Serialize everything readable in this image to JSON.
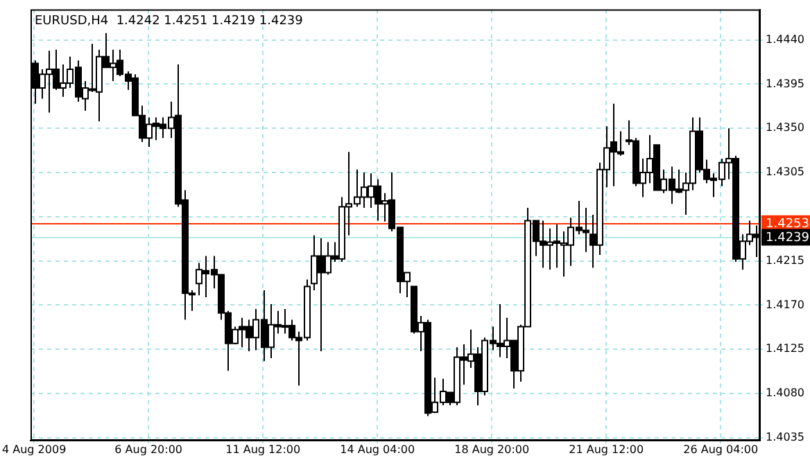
{
  "chart_data": {
    "type": "candlestick",
    "title": "EURUSD,H4  1.4242 1.4251 1.4219 1.4239",
    "colors": [
      "#000000",
      "#ffffff",
      "#ffffff",
      "#000000",
      "#ffffff",
      "#ffffff",
      "#000000",
      "#ffffff",
      "#000000",
      "#ffffff",
      "#000000",
      "#ffffff",
      "#000000",
      "#000000",
      "#000000",
      "#000000",
      "#ffffff",
      "#000000",
      "#000000",
      "#ffffff",
      "#000000",
      "#000000",
      "#ffffff",
      "#ffffff",
      "#000000",
      "#000000",
      "#000000",
      "#000000",
      "#ffffff",
      "#000000",
      "#000000",
      "#ffffff",
      "#000000",
      "#ffffff",
      "#000000",
      "#000000",
      "#000000",
      "#000000",
      "#ffffff",
      "#ffffff",
      "#000000",
      "#ffffff",
      "#000000",
      "#ffffff",
      "#ffffff",
      "#ffffff",
      "#ffffff",
      "#ffffff",
      "#000000",
      "#ffffff",
      "#000000",
      "#000000",
      "#ffffff",
      "#000000",
      "#ffffff",
      "#000000",
      "#ffffff",
      "#ffffff",
      "#000000",
      "#ffffff",
      "#000000",
      "#ffffff",
      "#000000",
      "#ffffff",
      "#000000",
      "#000000",
      "#ffffff",
      "#000000",
      "#ffffff",
      "#ffffff",
      "#000000",
      "#000000",
      "#ffffff",
      "#000000",
      "#ffffff",
      "#ffffff",
      "#000000",
      "#000000",
      "#000000",
      "#ffffff",
      "#ffffff",
      "#000000",
      "#000000",
      "#000000",
      "#000000",
      "#ffffff",
      "#ffffff",
      "#000000",
      "#ffffff",
      "#000000",
      "#000000",
      "#ffffff",
      "#ffffff",
      "#000000",
      "#000000",
      "#000000",
      "#ffffff",
      "#ffffff",
      "#000000",
      "#ffffff",
      "#ffffff",
      "#000000"
    ],
    "categories": [
      "4 Aug 2009",
      null,
      null,
      null,
      null,
      null,
      null,
      null,
      null,
      null,
      null,
      null,
      null,
      null,
      null,
      null,
      "6 Aug 20:00",
      null,
      null,
      null,
      null,
      null,
      null,
      null,
      null,
      null,
      null,
      null,
      null,
      null,
      null,
      null,
      "11 Aug 12:00",
      null,
      null,
      null,
      null,
      null,
      null,
      null,
      null,
      null,
      null,
      null,
      null,
      null,
      null,
      null,
      "14 Aug 04:00",
      null,
      null,
      null,
      null,
      null,
      null,
      null,
      null,
      null,
      null,
      null,
      null,
      null,
      null,
      null,
      "18 Aug 20:00",
      null,
      null,
      null,
      null,
      null,
      null,
      null,
      null,
      null,
      null,
      null,
      null,
      null,
      null,
      null,
      "21 Aug 12:00",
      null,
      null,
      null,
      null,
      null,
      null,
      null,
      null,
      null,
      null,
      null,
      null,
      null,
      null,
      null,
      "26 Aug 04:00",
      null,
      null,
      null,
      null,
      null
    ],
    "ohlc": [
      [
        1.4416,
        1.4419,
        1.4375,
        1.4391
      ],
      [
        1.4391,
        1.441,
        1.438,
        1.4405
      ],
      [
        1.4405,
        1.4429,
        1.4366,
        1.441
      ],
      [
        1.441,
        1.443,
        1.4389,
        1.4391
      ],
      [
        1.4391,
        1.4415,
        1.4382,
        1.4396
      ],
      [
        1.4396,
        1.4423,
        1.4391,
        1.441
      ],
      [
        1.4412,
        1.4419,
        1.4377,
        1.4382
      ],
      [
        1.438,
        1.4398,
        1.4368,
        1.4391
      ],
      [
        1.439,
        1.4436,
        1.4387,
        1.4389
      ],
      [
        1.4387,
        1.443,
        1.4357,
        1.4423
      ],
      [
        1.4423,
        1.4447,
        1.4412,
        1.4412
      ],
      [
        1.4412,
        1.443,
        1.4398,
        1.4416
      ],
      [
        1.4419,
        1.443,
        1.4403,
        1.4405
      ],
      [
        1.4405,
        1.4408,
        1.4389,
        1.4398
      ],
      [
        1.4401,
        1.4405,
        1.4363,
        1.4363
      ],
      [
        1.4363,
        1.4373,
        1.4336,
        1.434
      ],
      [
        1.434,
        1.4361,
        1.4331,
        1.4354
      ],
      [
        1.4355,
        1.4361,
        1.4338,
        1.4352
      ],
      [
        1.4354,
        1.4361,
        1.434,
        1.435
      ],
      [
        1.435,
        1.4377,
        1.434,
        1.4361
      ],
      [
        1.4363,
        1.4415,
        1.427,
        1.4273
      ],
      [
        1.4277,
        1.4287,
        1.4155,
        1.4182
      ],
      [
        1.4181,
        1.4185,
        1.4164,
        1.4182
      ],
      [
        1.4192,
        1.4213,
        1.418,
        1.4206
      ],
      [
        1.4205,
        1.422,
        1.4178,
        1.4202
      ],
      [
        1.4206,
        1.422,
        1.4187,
        1.4201
      ],
      [
        1.4201,
        1.4201,
        1.4155,
        1.4162
      ],
      [
        1.4162,
        1.4164,
        1.4103,
        1.4131
      ],
      [
        1.4131,
        1.4148,
        1.413,
        1.4145
      ],
      [
        1.4148,
        1.4157,
        1.4127,
        1.4145
      ],
      [
        1.4148,
        1.4155,
        1.4123,
        1.4137
      ],
      [
        1.4137,
        1.4166,
        1.4124,
        1.4155
      ],
      [
        1.4155,
        1.4185,
        1.4113,
        1.4127
      ],
      [
        1.4127,
        1.4171,
        1.4116,
        1.415
      ],
      [
        1.415,
        1.4164,
        1.4141,
        1.4148
      ],
      [
        1.4149,
        1.4166,
        1.4141,
        1.4148
      ],
      [
        1.4149,
        1.4155,
        1.4134,
        1.4137
      ],
      [
        1.4137,
        1.4143,
        1.4088,
        1.4134
      ],
      [
        1.4137,
        1.4196,
        1.4134,
        1.4189
      ],
      [
        1.4192,
        1.4241,
        1.4185,
        1.422
      ],
      [
        1.422,
        1.4238,
        1.4123,
        1.4203
      ],
      [
        1.4203,
        1.4234,
        1.4201,
        1.422
      ],
      [
        1.422,
        1.4234,
        1.4214,
        1.4217
      ],
      [
        1.4217,
        1.428,
        1.4214,
        1.427
      ],
      [
        1.427,
        1.4326,
        1.4241,
        1.4273
      ],
      [
        1.4273,
        1.4308,
        1.427,
        1.428
      ],
      [
        1.428,
        1.4305,
        1.4269,
        1.429
      ],
      [
        1.428,
        1.4304,
        1.4269,
        1.4291
      ],
      [
        1.4291,
        1.4298,
        1.4256,
        1.4273
      ],
      [
        1.4273,
        1.4284,
        1.4255,
        1.4276
      ],
      [
        1.4277,
        1.4305,
        1.4245,
        1.4248
      ],
      [
        1.4249,
        1.4249,
        1.4182,
        1.4194
      ],
      [
        1.4194,
        1.4203,
        1.4178,
        1.4203
      ],
      [
        1.4189,
        1.4189,
        1.4141,
        1.4143
      ],
      [
        1.4143,
        1.4159,
        1.4123,
        1.4152
      ],
      [
        1.4152,
        1.4155,
        1.4057,
        1.406
      ],
      [
        1.4061,
        1.4096,
        1.406,
        1.4071
      ],
      [
        1.4071,
        1.4095,
        1.4068,
        1.4082
      ],
      [
        1.4081,
        1.4081,
        1.4068,
        1.4071
      ],
      [
        1.4071,
        1.4127,
        1.4068,
        1.4117
      ],
      [
        1.4117,
        1.413,
        1.4089,
        1.4114
      ],
      [
        1.4113,
        1.4145,
        1.4106,
        1.412
      ],
      [
        1.412,
        1.4127,
        1.4068,
        1.4082
      ],
      [
        1.4082,
        1.4137,
        1.4078,
        1.4134
      ],
      [
        1.4134,
        1.4148,
        1.4124,
        1.4131
      ],
      [
        1.4131,
        1.4171,
        1.4117,
        1.4128
      ],
      [
        1.4128,
        1.4157,
        1.4116,
        1.4134
      ],
      [
        1.4134,
        1.4134,
        1.4085,
        1.4103
      ],
      [
        1.4103,
        1.415,
        1.4092,
        1.4148
      ],
      [
        1.4148,
        1.4269,
        1.4148,
        1.4256
      ],
      [
        1.4256,
        1.4256,
        1.422,
        1.4235
      ],
      [
        1.4235,
        1.4256,
        1.4208,
        1.4231
      ],
      [
        1.4231,
        1.4248,
        1.4206,
        1.4234
      ],
      [
        1.4235,
        1.4252,
        1.4208,
        1.4233
      ],
      [
        1.4231,
        1.4245,
        1.4199,
        1.4233
      ],
      [
        1.4231,
        1.4259,
        1.421,
        1.4249
      ],
      [
        1.4249,
        1.4276,
        1.4242,
        1.4246
      ],
      [
        1.4246,
        1.4269,
        1.4224,
        1.4244
      ],
      [
        1.4242,
        1.4262,
        1.4208,
        1.4231
      ],
      [
        1.4231,
        1.4315,
        1.4221,
        1.4308
      ],
      [
        1.4308,
        1.4352,
        1.429,
        1.433
      ],
      [
        1.4336,
        1.4375,
        1.4291,
        1.4326
      ],
      [
        1.4326,
        1.4347,
        1.4322,
        1.4324
      ],
      [
        1.4338,
        1.4358,
        1.4333,
        1.4337
      ],
      [
        1.4337,
        1.434,
        1.4291,
        1.4294
      ],
      [
        1.4294,
        1.4319,
        1.428,
        1.4305
      ],
      [
        1.4305,
        1.4343,
        1.4294,
        1.4319
      ],
      [
        1.4333,
        1.4333,
        1.4287,
        1.4287
      ],
      [
        1.4287,
        1.4308,
        1.4284,
        1.4298
      ],
      [
        1.4298,
        1.4311,
        1.4273,
        1.4287
      ],
      [
        1.4288,
        1.4308,
        1.4284,
        1.4285
      ],
      [
        1.4287,
        1.4305,
        1.4262,
        1.4294
      ],
      [
        1.4294,
        1.4361,
        1.4287,
        1.4347
      ],
      [
        1.4347,
        1.4361,
        1.4305,
        1.4308
      ],
      [
        1.4308,
        1.4318,
        1.4294,
        1.4298
      ],
      [
        1.4299,
        1.4304,
        1.428,
        1.4297
      ],
      [
        1.4298,
        1.4319,
        1.4291,
        1.4315
      ],
      [
        1.4315,
        1.435,
        1.4298,
        1.4319
      ],
      [
        1.4319,
        1.4322,
        1.4214,
        1.4217
      ],
      [
        1.4217,
        1.4242,
        1.4206,
        1.4235
      ],
      [
        1.4235,
        1.4256,
        1.4231,
        1.4242
      ],
      [
        1.4242,
        1.4251,
        1.4219,
        1.4239
      ]
    ],
    "ylim": [
      1.4032,
      1.4471
    ],
    "yticks": [
      {
        "value": 1.444,
        "label": "1.4440"
      },
      1.4395,
      {
        "value": 1.435,
        "label": "1.4350"
      },
      1.4305,
      {
        "value": 1.426,
        "label": null
      },
      1.4215,
      {
        "value": 1.417,
        "label": "1.4170"
      },
      1.4125,
      {
        "value": 1.408,
        "label": "1.4080"
      },
      1.4035
    ],
    "grid": true,
    "legend": false,
    "ref_lines": [
      {
        "axis": "y",
        "value": 1.4253,
        "label": "1.4253",
        "color": "#ff3300"
      },
      {
        "axis": "y",
        "value": 1.4239,
        "label": "1.4239",
        "color": "#b0ece4"
      }
    ]
  }
}
